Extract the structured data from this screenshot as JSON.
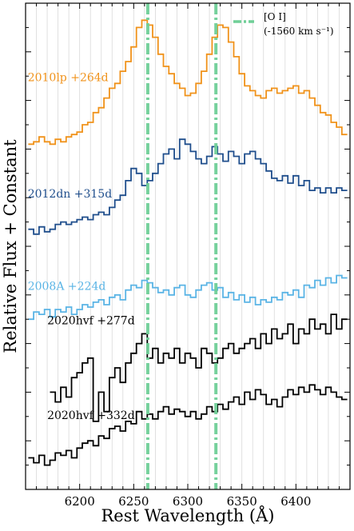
{
  "chart_data": {
    "type": "line",
    "title": "",
    "xlabel": "Rest Wavelength (Å)",
    "ylabel": "Relative Flux + Constant",
    "xlim": [
      6150,
      6450
    ],
    "ylim": [
      0,
      10
    ],
    "x_ticks": [
      6200,
      6250,
      6300,
      6350,
      6400
    ],
    "y_tick_labels": "none",
    "grid": "vertical lines at every 10 Å",
    "legend_position": "top-right",
    "legend": [
      {
        "label": "[O I]",
        "sublabel": "(-1560 km s⁻¹)",
        "color": "#6fcf97",
        "style": "dash-dot"
      }
    ],
    "vertical_lines": [
      {
        "x": 6263,
        "color": "#6fcf97",
        "style": "dash-dot"
      },
      {
        "x": 6326,
        "color": "#6fcf97",
        "style": "dash-dot"
      }
    ],
    "series": [
      {
        "name": "2010lp +264d",
        "color": "#f0921a",
        "line_style": "steps",
        "x": [
          6155,
          6160,
          6165,
          6170,
          6175,
          6180,
          6185,
          6190,
          6195,
          6200,
          6205,
          6210,
          6215,
          6220,
          6225,
          6230,
          6235,
          6240,
          6245,
          6250,
          6255,
          6260,
          6265,
          6270,
          6275,
          6280,
          6285,
          6290,
          6295,
          6300,
          6305,
          6310,
          6315,
          6320,
          6325,
          6330,
          6335,
          6340,
          6345,
          6350,
          6355,
          6360,
          6365,
          6370,
          6375,
          6380,
          6385,
          6390,
          6395,
          6400,
          6405,
          6410,
          6415,
          6420,
          6425,
          6430,
          6435,
          6440,
          6445
        ],
        "y": [
          7.1,
          7.15,
          7.25,
          7.15,
          7.1,
          7.2,
          7.15,
          7.25,
          7.3,
          7.35,
          7.5,
          7.55,
          7.75,
          7.85,
          8.05,
          8.25,
          8.35,
          8.6,
          8.8,
          9.1,
          9.5,
          9.65,
          9.55,
          9.3,
          8.95,
          8.7,
          8.55,
          8.35,
          8.25,
          8.1,
          8.15,
          8.35,
          8.6,
          8.95,
          9.3,
          9.55,
          9.5,
          9.2,
          8.9,
          8.55,
          8.3,
          8.2,
          8.1,
          8.05,
          8.2,
          8.25,
          8.15,
          8.2,
          8.25,
          8.3,
          8.15,
          8.2,
          8.05,
          7.9,
          7.75,
          7.7,
          7.55,
          7.45,
          7.3
        ]
      },
      {
        "name": "2012dn +315d",
        "color": "#1f4e8c",
        "line_style": "steps",
        "x": [
          6155,
          6160,
          6165,
          6170,
          6175,
          6180,
          6185,
          6190,
          6195,
          6200,
          6205,
          6210,
          6215,
          6220,
          6225,
          6230,
          6235,
          6240,
          6245,
          6250,
          6255,
          6260,
          6265,
          6270,
          6275,
          6280,
          6285,
          6290,
          6295,
          6300,
          6305,
          6310,
          6315,
          6320,
          6325,
          6330,
          6335,
          6340,
          6345,
          6350,
          6355,
          6360,
          6365,
          6370,
          6375,
          6380,
          6385,
          6390,
          6395,
          6400,
          6405,
          6410,
          6415,
          6420,
          6425,
          6430,
          6435,
          6440,
          6445
        ],
        "y": [
          5.35,
          5.25,
          5.4,
          5.3,
          5.35,
          5.45,
          5.5,
          5.45,
          5.5,
          5.55,
          5.6,
          5.55,
          5.65,
          5.7,
          5.65,
          5.8,
          5.95,
          6.05,
          6.35,
          6.6,
          6.5,
          6.25,
          6.35,
          6.5,
          6.7,
          6.9,
          7.0,
          6.8,
          7.2,
          7.1,
          6.95,
          6.8,
          6.7,
          6.85,
          7.05,
          6.9,
          6.75,
          6.95,
          6.85,
          6.7,
          6.9,
          6.95,
          6.8,
          6.7,
          6.55,
          6.4,
          6.35,
          6.45,
          6.3,
          6.45,
          6.25,
          6.35,
          6.15,
          6.2,
          6.1,
          6.2,
          6.1,
          6.2,
          6.15
        ]
      },
      {
        "name": "2008A +224d",
        "color": "#5ab4e5",
        "line_style": "steps",
        "x": [
          6155,
          6160,
          6165,
          6170,
          6175,
          6180,
          6185,
          6190,
          6195,
          6200,
          6205,
          6210,
          6215,
          6220,
          6225,
          6230,
          6235,
          6240,
          6245,
          6250,
          6255,
          6260,
          6265,
          6270,
          6275,
          6280,
          6285,
          6290,
          6295,
          6300,
          6305,
          6310,
          6315,
          6320,
          6325,
          6330,
          6335,
          6340,
          6345,
          6350,
          6355,
          6360,
          6365,
          6370,
          6375,
          6380,
          6385,
          6390,
          6395,
          6400,
          6405,
          6410,
          6415,
          6420,
          6425,
          6430,
          6435,
          6440,
          6445
        ],
        "y": [
          3.5,
          3.65,
          3.6,
          3.7,
          3.55,
          3.7,
          3.65,
          3.75,
          3.6,
          3.7,
          3.8,
          3.75,
          3.85,
          3.9,
          3.8,
          3.95,
          4.0,
          3.9,
          4.1,
          4.2,
          4.15,
          4.3,
          4.25,
          4.15,
          4.05,
          4.1,
          4.0,
          4.15,
          4.2,
          4.0,
          3.95,
          4.1,
          4.2,
          4.25,
          4.1,
          4.15,
          3.95,
          4.05,
          3.9,
          4.0,
          3.85,
          3.95,
          3.8,
          3.9,
          3.85,
          3.95,
          3.9,
          4.05,
          4.0,
          4.1,
          3.95,
          4.2,
          4.15,
          4.3,
          4.2,
          4.35,
          4.25,
          4.4,
          4.35
        ]
      },
      {
        "name": "2020hvf +277d",
        "color": "#000000",
        "line_style": "steps",
        "x": [
          6175,
          6180,
          6185,
          6190,
          6195,
          6200,
          6205,
          6210,
          6215,
          6220,
          6225,
          6230,
          6235,
          6240,
          6245,
          6250,
          6255,
          6260,
          6265,
          6270,
          6275,
          6280,
          6285,
          6290,
          6295,
          6300,
          6305,
          6310,
          6315,
          6320,
          6325,
          6330,
          6335,
          6340,
          6345,
          6350,
          6355,
          6360,
          6365,
          6370,
          6375,
          6380,
          6385,
          6390,
          6395,
          6400,
          6405,
          6410,
          6415,
          6420,
          6425,
          6430,
          6435,
          6440,
          6445
        ],
        "y": [
          2.0,
          1.8,
          2.1,
          1.9,
          2.3,
          2.4,
          2.6,
          2.7,
          1.4,
          2.0,
          1.6,
          2.3,
          2.5,
          2.2,
          2.6,
          2.8,
          3.0,
          3.2,
          2.7,
          2.9,
          2.6,
          2.8,
          2.7,
          2.9,
          2.6,
          2.8,
          2.7,
          2.5,
          2.9,
          2.8,
          2.6,
          2.7,
          2.9,
          3.0,
          2.8,
          2.9,
          3.0,
          3.1,
          2.9,
          3.2,
          3.0,
          3.3,
          3.1,
          3.2,
          3.4,
          3.0,
          3.3,
          3.2,
          3.5,
          3.3,
          3.4,
          3.2,
          3.6,
          3.3,
          3.5
        ]
      },
      {
        "name": "2020hvf +332d",
        "color": "#000000",
        "line_style": "steps",
        "x": [
          6155,
          6160,
          6165,
          6170,
          6175,
          6180,
          6185,
          6190,
          6195,
          6200,
          6205,
          6210,
          6215,
          6220,
          6225,
          6230,
          6235,
          6240,
          6245,
          6250,
          6255,
          6260,
          6265,
          6270,
          6275,
          6280,
          6285,
          6290,
          6295,
          6300,
          6305,
          6310,
          6315,
          6320,
          6325,
          6330,
          6335,
          6340,
          6345,
          6350,
          6355,
          6360,
          6365,
          6370,
          6375,
          6380,
          6385,
          6390,
          6395,
          6400,
          6405,
          6410,
          6415,
          6420,
          6425,
          6430,
          6435,
          6440,
          6445
        ],
        "y": [
          0.65,
          0.55,
          0.7,
          0.5,
          0.6,
          0.75,
          0.7,
          0.8,
          0.65,
          0.85,
          0.95,
          1.0,
          0.9,
          1.1,
          1.05,
          1.25,
          1.3,
          1.2,
          1.4,
          1.35,
          1.6,
          1.45,
          1.55,
          1.45,
          1.6,
          1.7,
          1.55,
          1.65,
          1.6,
          1.5,
          1.6,
          1.45,
          1.55,
          1.7,
          1.6,
          1.75,
          1.65,
          1.8,
          1.9,
          1.75,
          2.0,
          1.85,
          2.05,
          1.95,
          1.75,
          1.85,
          1.7,
          1.9,
          2.05,
          1.95,
          2.1,
          2.0,
          2.15,
          2.05,
          1.95,
          2.1,
          2.0,
          1.9,
          1.85
        ]
      }
    ],
    "annotations": [
      {
        "text": "2010lp +264d",
        "x": 6152,
        "y": 8.4,
        "color": "#f0921a",
        "series": 0
      },
      {
        "text": "2012dn +315d",
        "x": 6152,
        "y": 6.0,
        "color": "#1f4e8c",
        "series": 1
      },
      {
        "text": "2008A +224d",
        "x": 6152,
        "y": 4.1,
        "color": "#5ab4e5",
        "series": 2
      },
      {
        "text": "2020hvf +277d",
        "x": 6170,
        "y": 3.4,
        "color": "#000000",
        "series": 3
      },
      {
        "text": "2020hvf +332d",
        "x": 6170,
        "y": 1.45,
        "color": "#000000",
        "series": 4
      }
    ]
  }
}
